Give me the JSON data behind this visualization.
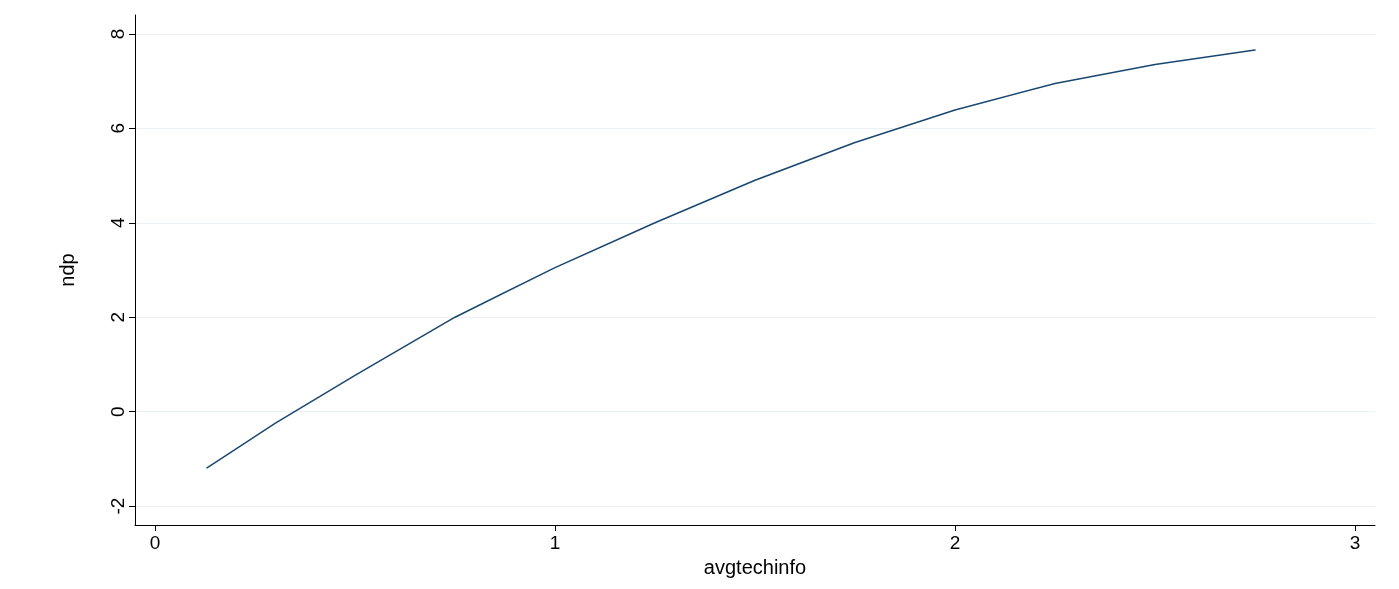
{
  "chart_data": {
    "type": "line",
    "xlabel": "avgtechinfo",
    "ylabel": "ndp",
    "x": [
      0.13,
      0.3,
      0.5,
      0.75,
      1,
      1.25,
      1.5,
      1.75,
      2,
      2.25,
      2.5,
      2.75
    ],
    "series": [
      {
        "color": "#1a476f",
        "values": [
          -1.19,
          -0.25,
          0.77,
          2.0,
          3.05,
          4.0,
          4.9,
          5.7,
          6.39,
          6.95,
          7.35,
          7.66
        ]
      }
    ],
    "xlim": [
      -0.05,
      3.05
    ],
    "xticks": [
      0,
      1,
      2,
      3
    ],
    "ylim": [
      -2.4,
      8.4
    ],
    "yticks": [
      -2,
      0,
      2,
      4,
      6,
      8
    ],
    "grid": "y",
    "marker": "none",
    "line_style": "solid"
  }
}
